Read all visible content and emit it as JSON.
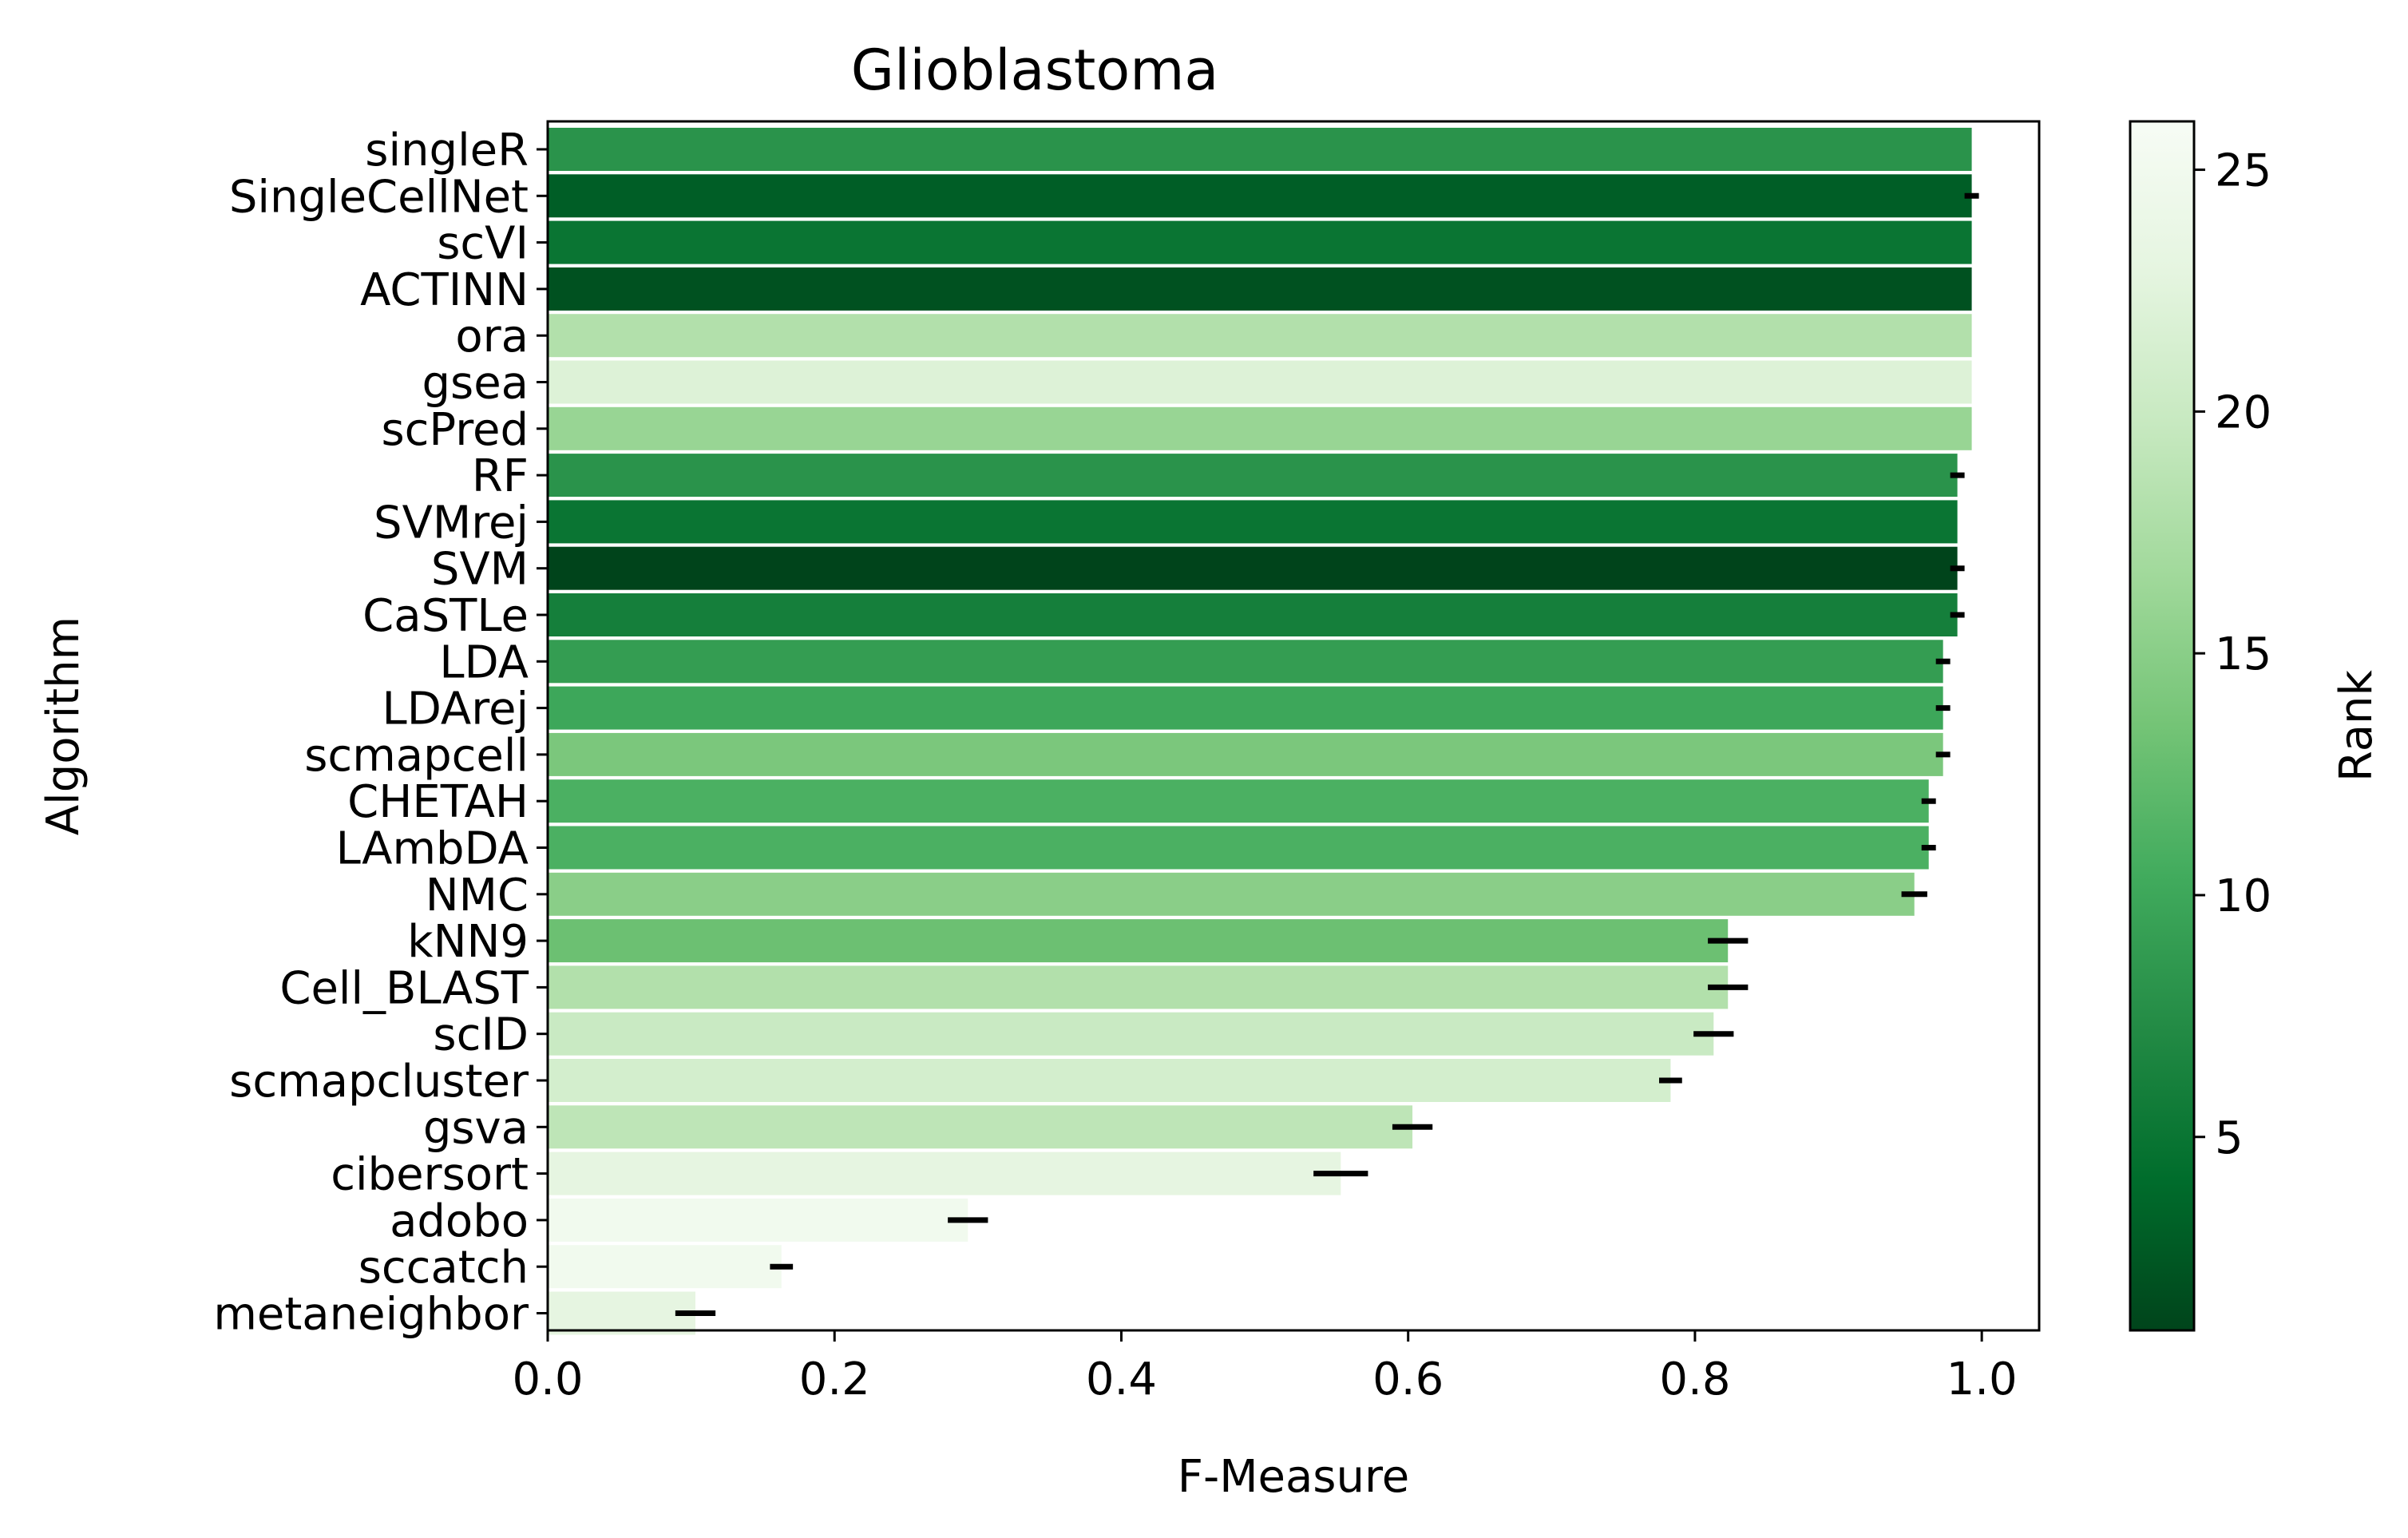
{
  "chart_data": {
    "type": "bar",
    "orientation": "horizontal",
    "title": "Glioblastoma",
    "xlabel": "F-Measure",
    "ylabel": "Algorithm",
    "xlim": [
      0.0,
      1.04
    ],
    "xticks": [
      "0.0",
      "0.2",
      "0.4",
      "0.6",
      "0.8",
      "1.0"
    ],
    "grid": false,
    "categories": [
      "singleR",
      "SingleCellNet",
      "scVI",
      "ACTINN",
      "ora",
      "gsea",
      "scPred",
      "RF",
      "SVMrej",
      "SVM",
      "CaSTLe",
      "LDA",
      "LDArej",
      "scmapcell",
      "CHETAH",
      "LAmbDA",
      "NMC",
      "kNN9",
      "Cell_BLAST",
      "scID",
      "scmapcluster",
      "gsva",
      "cibersort",
      "adobo",
      "sccatch",
      "metaneighbor"
    ],
    "values": [
      0.993,
      0.993,
      0.993,
      0.993,
      0.993,
      0.993,
      0.993,
      0.983,
      0.983,
      0.983,
      0.983,
      0.973,
      0.973,
      0.973,
      0.963,
      0.963,
      0.953,
      0.823,
      0.823,
      0.813,
      0.783,
      0.603,
      0.553,
      0.293,
      0.163,
      0.103
    ],
    "errors": [
      null,
      0.005,
      null,
      null,
      null,
      null,
      null,
      0.005,
      null,
      0.005,
      0.005,
      0.005,
      0.005,
      0.005,
      0.005,
      0.005,
      0.009,
      0.014,
      0.014,
      0.014,
      0.008,
      0.014,
      0.019,
      0.014,
      0.008,
      0.014
    ],
    "ranks": [
      8,
      3,
      5,
      2,
      18,
      22,
      16,
      8,
      5,
      1,
      6,
      9,
      10,
      14,
      11,
      11,
      15,
      13,
      18,
      20,
      21,
      19,
      23,
      25,
      25,
      23
    ],
    "colorbar": {
      "label": "Rank",
      "range": [
        1,
        26
      ],
      "ticks": [
        "5",
        "10",
        "15",
        "20",
        "25"
      ],
      "colormap": "Greens_r",
      "low_color": "#00441b",
      "high_color": "#f7fcf5"
    }
  }
}
